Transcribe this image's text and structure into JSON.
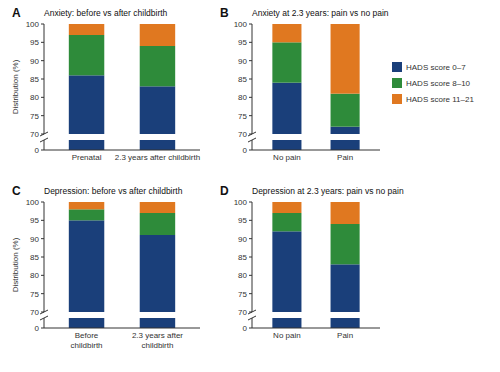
{
  "chart_data": [
    {
      "type": "bar",
      "stacked": true,
      "title": "Anxiety: before vs after childbirth",
      "annotations": [
        {
          "text": "A"
        }
      ],
      "ylabel": "Distribution (%)",
      "legend": "right",
      "categories": [
        "Prenatal",
        "2.3 years after childbirth"
      ],
      "series": [
        {
          "name": "HADS score 0–7",
          "color": "#1a3f7a",
          "values": [
            86,
            83
          ]
        },
        {
          "name": "HADS score 8–10",
          "color": "#2e8b3a",
          "values": [
            11,
            11
          ]
        },
        {
          "name": "HADS score 11–21",
          "color": "#e07820",
          "values": [
            3,
            6
          ]
        }
      ],
      "ylim": [
        0,
        100
      ],
      "yticks": [
        0,
        70,
        75,
        80,
        85,
        90,
        95,
        100
      ]
    },
    {
      "type": "bar",
      "stacked": true,
      "title": "Anxiety at 2.3 years: pain vs no pain",
      "annotations": [
        {
          "text": "B"
        }
      ],
      "categories": [
        "No pain",
        "Pain"
      ],
      "series": [
        {
          "name": "HADS score 0–7",
          "color": "#1a3f7a",
          "values": [
            84,
            72
          ]
        },
        {
          "name": "HADS score 8–10",
          "color": "#2e8b3a",
          "values": [
            11,
            9
          ]
        },
        {
          "name": "HADS score 11–21",
          "color": "#e07820",
          "values": [
            5,
            19
          ]
        }
      ],
      "ylim": [
        0,
        100
      ],
      "yticks": [
        0,
        70,
        75,
        80,
        85,
        90,
        95,
        100
      ]
    },
    {
      "type": "bar",
      "stacked": true,
      "title": "Depression: before vs after childbirth",
      "annotations": [
        {
          "text": "C"
        }
      ],
      "ylabel": "Distribution (%)",
      "categories": [
        "Before\nchildbirth",
        "2.3 years after\nchildbirth"
      ],
      "series": [
        {
          "name": "HADS score 0–7",
          "color": "#1a3f7a",
          "values": [
            95,
            91
          ]
        },
        {
          "name": "HADS score 8–10",
          "color": "#2e8b3a",
          "values": [
            3,
            6
          ]
        },
        {
          "name": "HADS score 11–21",
          "color": "#e07820",
          "values": [
            2,
            3
          ]
        }
      ],
      "ylim": [
        0,
        100
      ],
      "yticks": [
        0,
        70,
        75,
        80,
        85,
        90,
        95,
        100
      ]
    },
    {
      "type": "bar",
      "stacked": true,
      "title": "Depression at 2.3 years: pain vs no pain",
      "annotations": [
        {
          "text": "D"
        }
      ],
      "categories": [
        "No pain",
        "Pain"
      ],
      "series": [
        {
          "name": "HADS score 0–7",
          "color": "#1a3f7a",
          "values": [
            92,
            83
          ]
        },
        {
          "name": "HADS score 8–10",
          "color": "#2e8b3a",
          "values": [
            5,
            11
          ]
        },
        {
          "name": "HADS score 11–21",
          "color": "#e07820",
          "values": [
            3,
            6
          ]
        }
      ],
      "ylim": [
        0,
        100
      ],
      "yticks": [
        0,
        70,
        75,
        80,
        85,
        90,
        95,
        100
      ]
    }
  ]
}
